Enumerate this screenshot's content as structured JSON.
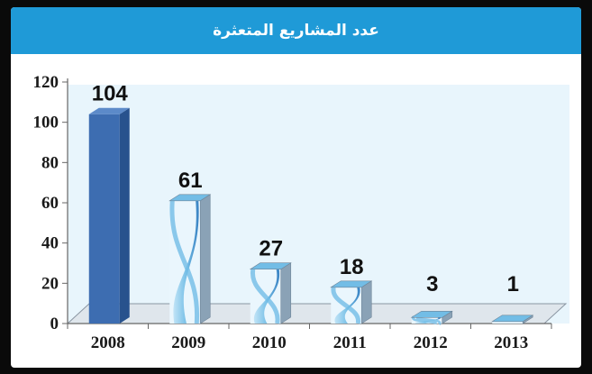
{
  "chart_data": {
    "type": "bar",
    "title": "عدد المشاريع المتعثرة",
    "categories": [
      "2008",
      "2009",
      "2010",
      "2011",
      "2012",
      "2013"
    ],
    "values": [
      104,
      61,
      27,
      18,
      3,
      1
    ],
    "data_labels": [
      "104",
      "61",
      "27",
      "18",
      "3",
      "1"
    ],
    "ylim": [
      0,
      120
    ],
    "yticks": [
      0,
      20,
      40,
      60,
      80,
      100,
      120
    ],
    "xlabel": "",
    "ylabel": "",
    "grid": false,
    "legend": "none"
  },
  "colors": {
    "header": "#1f9ad7",
    "plot_background": "#e8f5fc",
    "first_bar_front": "#3d6db1",
    "first_bar_side": "#28528d",
    "first_bar_top": "#5c8ac9",
    "ribbon_light": "#bfe3f6",
    "ribbon_mid": "#72bde6",
    "ribbon_dark": "#2f7cc0",
    "cube_side": "#8aa2b6",
    "floor": "#dfe6ec"
  }
}
